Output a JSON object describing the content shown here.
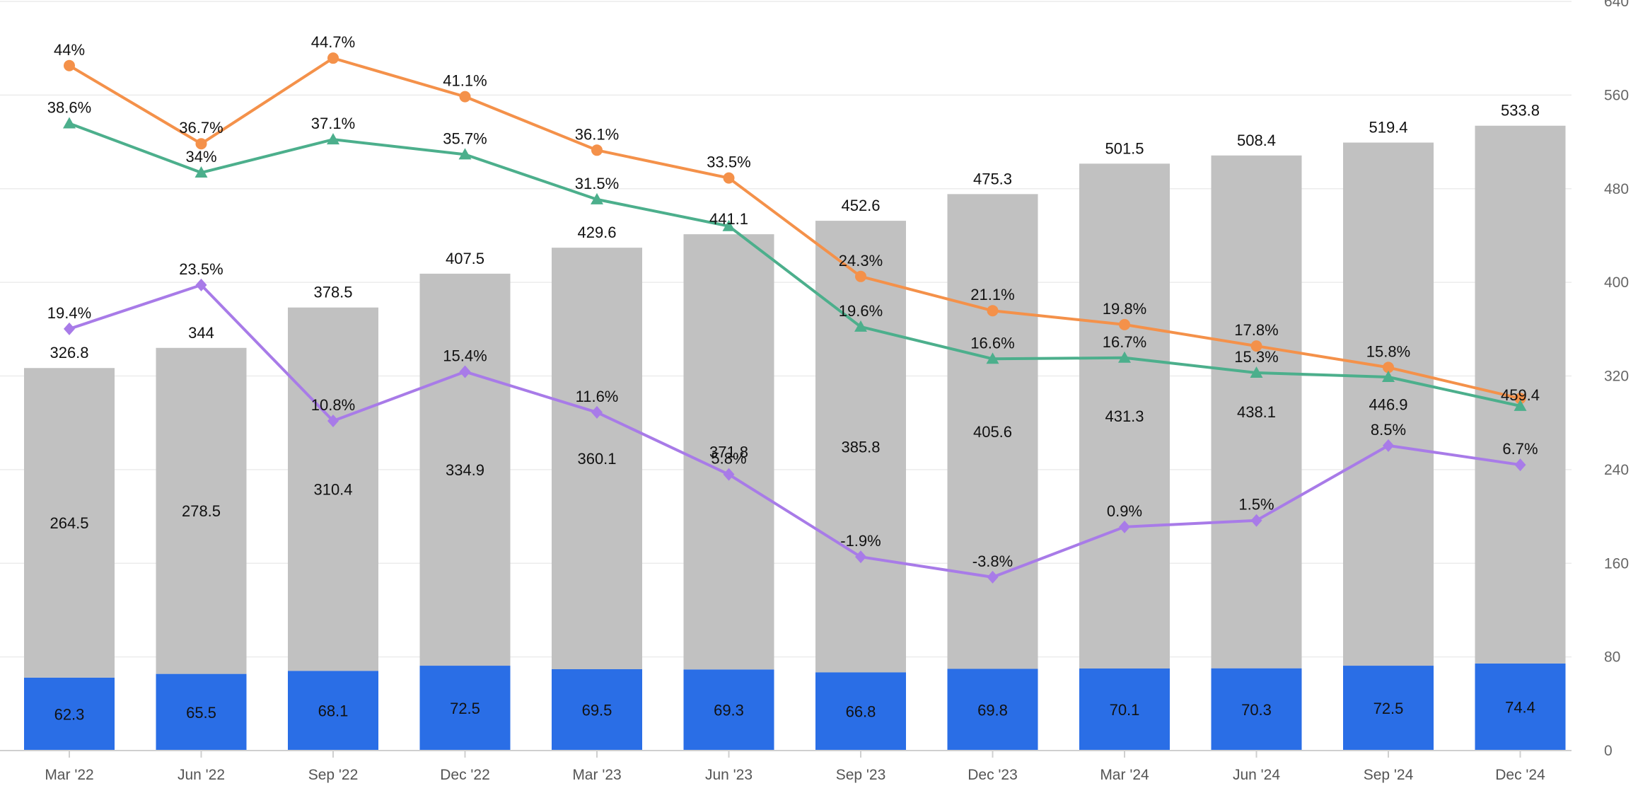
{
  "chart_data": {
    "type": "bar",
    "categories": [
      "Mar '22",
      "Jun '22",
      "Sep '22",
      "Dec '22",
      "Mar '23",
      "Jun '23",
      "Sep '23",
      "Dec '23",
      "Mar '24",
      "Jun '24",
      "Sep '24",
      "Dec '24"
    ],
    "bar_series": [
      {
        "color": "#2a6ee6",
        "values": [
          62.3,
          65.5,
          68.1,
          72.5,
          69.5,
          69.3,
          66.8,
          69.8,
          70.1,
          70.3,
          72.5,
          74.4
        ]
      },
      {
        "color": "#c1c1c1",
        "values": [
          264.5,
          278.5,
          310.4,
          334.9,
          360.1,
          371.8,
          385.8,
          405.6,
          431.3,
          438.1,
          446.9,
          459.4
        ]
      }
    ],
    "bar_totals": [
      326.8,
      344,
      378.5,
      407.5,
      429.6,
      441.1,
      452.6,
      475.3,
      501.5,
      508.4,
      519.4,
      533.8
    ],
    "line_series": [
      {
        "color": "#f4914a",
        "marker": "circle",
        "values": [
          44,
          36.7,
          44.7,
          41.1,
          36.1,
          33.5,
          24.3,
          21.1,
          19.8,
          17.8,
          15.8,
          12.9
        ],
        "labels": [
          "44%",
          "36.7%",
          "44.7%",
          "41.1%",
          "36.1%",
          "33.5%",
          "24.3%",
          "21.1%",
          "19.8%",
          "17.8%",
          "15.8%",
          ""
        ]
      },
      {
        "color": "#4caf8c",
        "marker": "triangle",
        "values": [
          38.6,
          34,
          37.1,
          35.7,
          31.5,
          29.0,
          19.6,
          16.6,
          16.7,
          15.3,
          14.9,
          12.2
        ],
        "labels": [
          "38.6%",
          "34%",
          "37.1%",
          "35.7%",
          "31.5%",
          "",
          "19.6%",
          "16.6%",
          "16.7%",
          "15.3%",
          "",
          ""
        ]
      },
      {
        "color": "#a87be8",
        "marker": "diamond",
        "values": [
          19.4,
          23.5,
          10.8,
          15.4,
          11.6,
          5.8,
          -1.9,
          -3.8,
          0.9,
          1.5,
          8.5,
          6.7
        ],
        "labels": [
          "19.4%",
          "23.5%",
          "10.8%",
          "15.4%",
          "11.6%",
          "5.8%",
          "-1.9%",
          "-3.8%",
          "0.9%",
          "1.5%",
          "8.5%",
          "6.7%"
        ]
      }
    ],
    "y_right_axis": {
      "min": 0,
      "max": 640,
      "ticks": [
        "0",
        "80",
        "160",
        "240",
        "320",
        "400",
        "480",
        "560",
        "640"
      ]
    },
    "line_axis_percent": {
      "min": -20,
      "max": 50,
      "shown": false
    },
    "grid": true,
    "title": "",
    "xlabel": "",
    "ylabel": ""
  }
}
